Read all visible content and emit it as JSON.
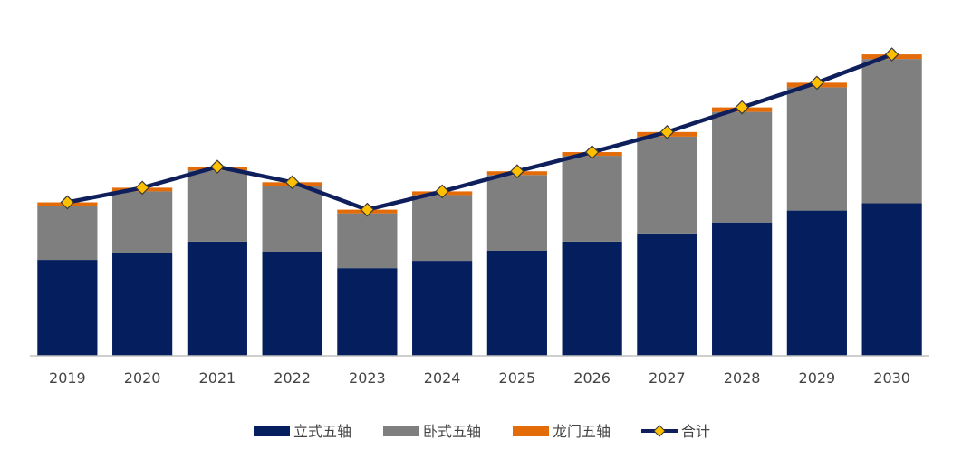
{
  "chart_data": {
    "type": "bar",
    "stacked": true,
    "categories": [
      "2019",
      "2020",
      "2021",
      "2022",
      "2023",
      "2024",
      "2025",
      "2026",
      "2027",
      "2028",
      "2029",
      "2030"
    ],
    "series": [
      {
        "name": "立式五轴",
        "color": "#041E5E",
        "values": [
          105,
          113,
          125,
          114,
          96,
          104,
          115,
          125,
          134,
          146,
          159,
          167
        ]
      },
      {
        "name": "卧式五轴",
        "color": "#7F7F7F",
        "values": [
          59,
          67,
          78,
          72,
          60,
          72,
          83,
          94,
          106,
          121,
          135,
          158
        ]
      },
      {
        "name": "龙门五轴",
        "color": "#E36C09",
        "values": [
          4,
          4,
          4,
          4,
          4,
          4,
          4,
          4,
          5,
          5,
          5,
          5
        ]
      }
    ],
    "line_series": {
      "name": "合计",
      "line_color": "#0E1F5C",
      "marker_color": "#FFC000",
      "values": [
        168,
        184,
        207,
        190,
        160,
        180,
        202,
        223,
        245,
        272,
        299,
        330
      ]
    },
    "ylim": [
      0,
      340
    ],
    "grid": false,
    "legend_position": "bottom",
    "title": "",
    "xlabel": "",
    "ylabel": ""
  }
}
